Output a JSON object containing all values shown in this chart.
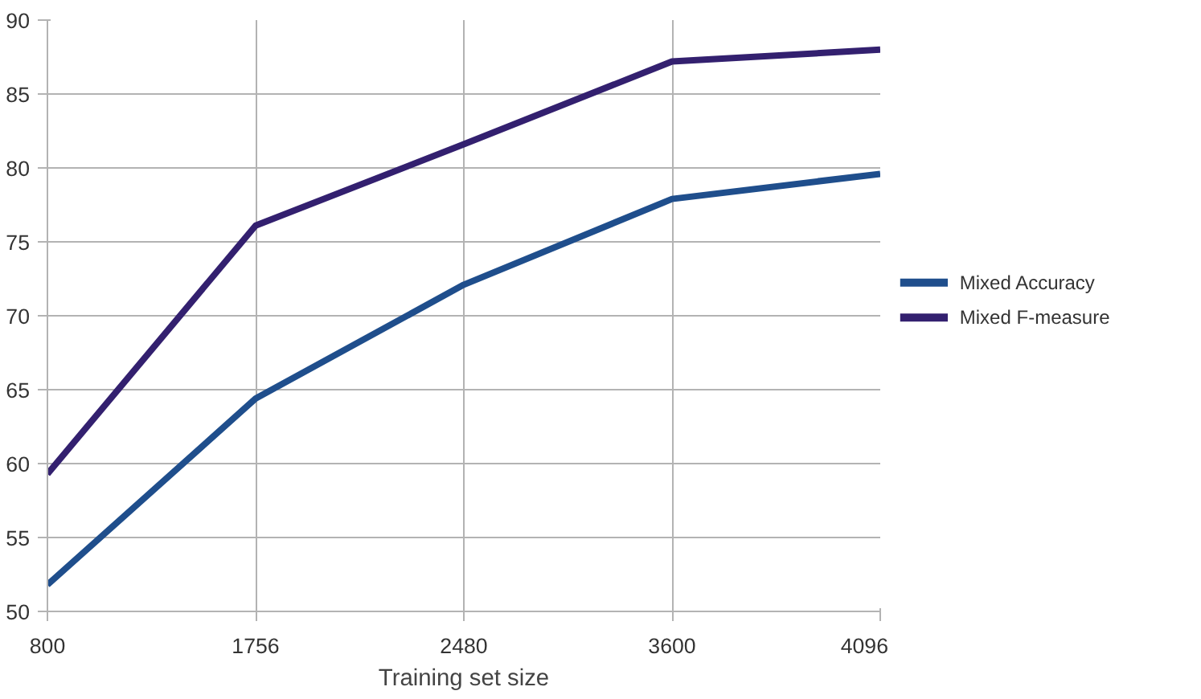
{
  "chart_data": {
    "type": "line",
    "xlabel": "Training set size",
    "categories": [
      "800",
      "1756",
      "2480",
      "3600",
      "4096"
    ],
    "series": [
      {
        "name": "Mixed Accuracy",
        "color": "#1f4e8c",
        "values": [
          51.8,
          64.4,
          72.1,
          77.9,
          79.6
        ]
      },
      {
        "name": "Mixed F-measure",
        "color": "#33206f",
        "values": [
          59.3,
          76.1,
          81.6,
          87.2,
          88.0
        ]
      }
    ],
    "ylim": [
      50,
      90
    ],
    "yticks": [
      50,
      55,
      60,
      65,
      70,
      75,
      80,
      85,
      90
    ],
    "grid": true,
    "legend": "right",
    "marker": "none",
    "line_style": "solid"
  }
}
